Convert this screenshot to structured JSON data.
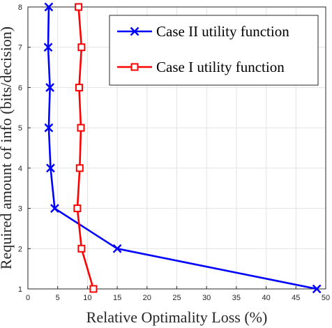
{
  "chart_data": {
    "type": "line",
    "title": "",
    "xlabel": "Relative Optimality Loss (%)",
    "ylabel": "Required amount of info (bits/decision)",
    "xlim": [
      0,
      50
    ],
    "ylim": [
      1,
      8
    ],
    "xticks": [
      "0",
      "5",
      "10",
      "15",
      "20",
      "25",
      "30",
      "35",
      "40",
      "45",
      "50"
    ],
    "yticks": [
      "1",
      "2",
      "3",
      "4",
      "5",
      "6",
      "7",
      "8"
    ],
    "grid": true,
    "legend_position": "top-right",
    "series": [
      {
        "name": "Case II utility function",
        "color": "#0000ff",
        "marker": "x",
        "x": [
          48.5,
          15.0,
          4.5,
          3.8,
          3.5,
          3.7,
          3.4,
          3.5
        ],
        "y": [
          1,
          2,
          3,
          4,
          5,
          6,
          7,
          8
        ]
      },
      {
        "name": "Case I utility function",
        "color": "#ff0000",
        "marker": "square",
        "x": [
          11.0,
          9.0,
          8.3,
          8.7,
          8.9,
          8.6,
          9.0,
          8.5
        ],
        "y": [
          1,
          2,
          3,
          4,
          5,
          6,
          7,
          8
        ]
      }
    ]
  }
}
